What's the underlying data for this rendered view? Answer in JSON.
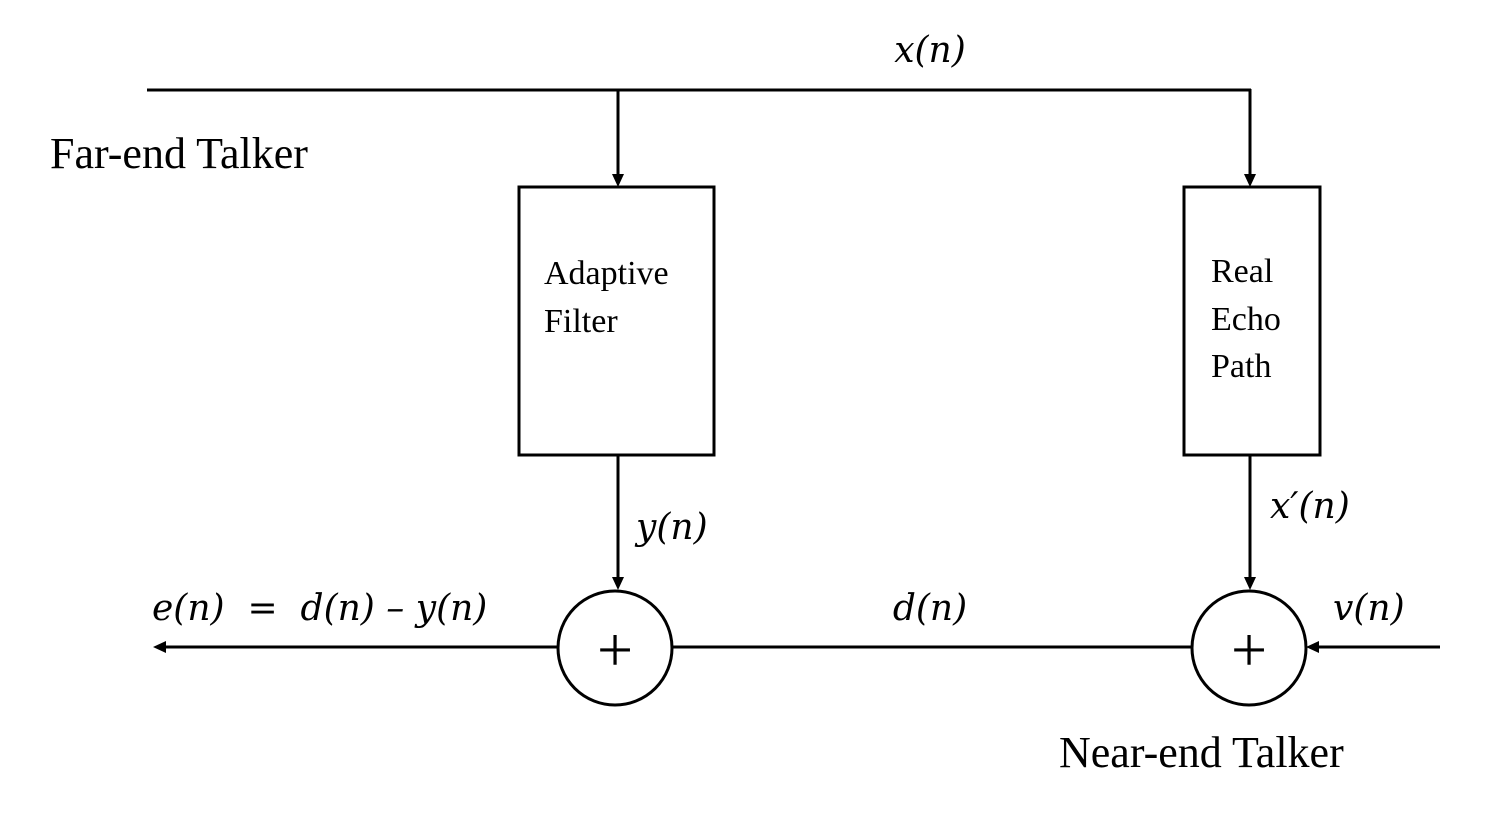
{
  "labels": {
    "far_end": "Far-end Talker",
    "near_end": "Near-end Talker"
  },
  "blocks": {
    "adaptive_filter": [
      "Adaptive",
      "Filter"
    ],
    "echo_path": [
      "Real",
      "Echo",
      "Path"
    ]
  },
  "signals": {
    "x": "x(n)",
    "y": "y(n)",
    "x_prime": "x′(n)",
    "v": "v(n)",
    "d": "d(n)",
    "e": "e(n)  =  d(n) – y(n)"
  },
  "summer_symbol": "+"
}
